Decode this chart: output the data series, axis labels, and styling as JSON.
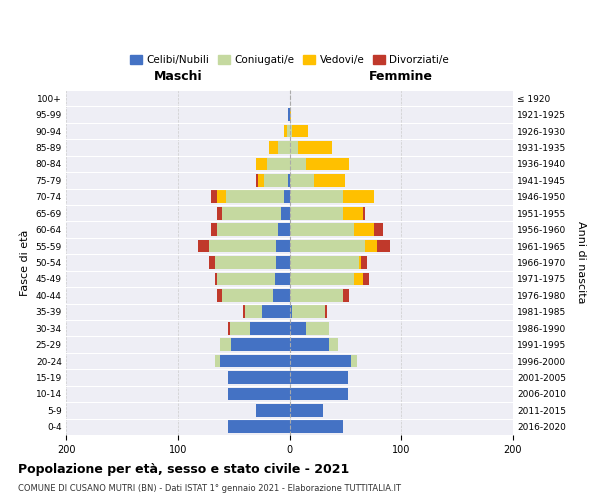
{
  "age_groups": [
    "0-4",
    "5-9",
    "10-14",
    "15-19",
    "20-24",
    "25-29",
    "30-34",
    "35-39",
    "40-44",
    "45-49",
    "50-54",
    "55-59",
    "60-64",
    "65-69",
    "70-74",
    "75-79",
    "80-84",
    "85-89",
    "90-94",
    "95-99",
    "100+"
  ],
  "birth_years": [
    "2016-2020",
    "2011-2015",
    "2006-2010",
    "2001-2005",
    "1996-2000",
    "1991-1995",
    "1986-1990",
    "1981-1985",
    "1976-1980",
    "1971-1975",
    "1966-1970",
    "1961-1965",
    "1956-1960",
    "1951-1955",
    "1946-1950",
    "1941-1945",
    "1936-1940",
    "1931-1935",
    "1926-1930",
    "1921-1925",
    "≤ 1920"
  ],
  "maschi": {
    "celibi": [
      55,
      30,
      55,
      55,
      62,
      52,
      35,
      25,
      15,
      13,
      12,
      12,
      10,
      8,
      5,
      1,
      0,
      0,
      0,
      1,
      0
    ],
    "coniugati": [
      0,
      0,
      0,
      0,
      5,
      10,
      18,
      15,
      45,
      52,
      55,
      60,
      55,
      52,
      52,
      22,
      20,
      10,
      2,
      0,
      0
    ],
    "vedovi": [
      0,
      0,
      0,
      0,
      0,
      0,
      0,
      0,
      0,
      0,
      0,
      0,
      0,
      0,
      8,
      5,
      10,
      8,
      3,
      0,
      0
    ],
    "divorziati": [
      0,
      0,
      0,
      0,
      0,
      0,
      2,
      2,
      5,
      2,
      5,
      10,
      5,
      5,
      5,
      2,
      0,
      0,
      0,
      0,
      0
    ]
  },
  "femmine": {
    "nubili": [
      48,
      30,
      52,
      52,
      55,
      35,
      15,
      2,
      0,
      0,
      0,
      0,
      0,
      0,
      0,
      0,
      0,
      0,
      0,
      0,
      0
    ],
    "coniugate": [
      0,
      0,
      0,
      0,
      5,
      8,
      20,
      30,
      48,
      58,
      62,
      68,
      58,
      48,
      48,
      22,
      15,
      8,
      2,
      0,
      0
    ],
    "vedove": [
      0,
      0,
      0,
      0,
      0,
      0,
      0,
      0,
      0,
      8,
      2,
      10,
      18,
      18,
      28,
      28,
      38,
      30,
      15,
      1,
      0
    ],
    "divorziate": [
      0,
      0,
      0,
      0,
      0,
      0,
      0,
      2,
      5,
      5,
      5,
      12,
      8,
      2,
      0,
      0,
      0,
      0,
      0,
      0,
      0
    ]
  },
  "colors": {
    "celibi": "#4472c4",
    "coniugati": "#c5d9a0",
    "vedovi": "#ffc000",
    "divorziati": "#c0392b"
  },
  "title": "Popolazione per età, sesso e stato civile - 2021",
  "subtitle": "COMUNE DI CUSANO MUTRI (BN) - Dati ISTAT 1° gennaio 2021 - Elaborazione TUTTITALIA.IT",
  "xlabel_left": "Maschi",
  "xlabel_right": "Femmine",
  "ylabel_left": "Fasce di età",
  "ylabel_right": "Anni di nascita",
  "xlim": 200,
  "legend_labels": [
    "Celibi/Nubili",
    "Coniugati/e",
    "Vedovi/e",
    "Divorziati/e"
  ],
  "background_color": "#ffffff",
  "plot_bg_color": "#eeeef5",
  "grid_color": "#ffffff"
}
